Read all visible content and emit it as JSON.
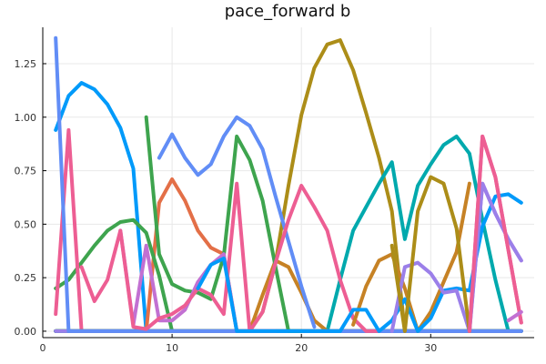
{
  "chart_data": {
    "type": "line",
    "title": "pace_forward b",
    "xlabel": "",
    "ylabel": "",
    "xlim": [
      0,
      38
    ],
    "ylim": [
      -0.03,
      1.42
    ],
    "xticks": [
      0,
      10,
      20,
      30
    ],
    "xtick_labels": [
      "0",
      "10",
      "20",
      "30"
    ],
    "yticks": [
      0.0,
      0.25,
      0.5,
      0.75,
      1.0,
      1.25
    ],
    "ytick_labels": [
      "0.00",
      "0.25",
      "0.50",
      "0.75",
      "1.00",
      "1.25"
    ],
    "grid": true,
    "legend": "none",
    "x": [
      1,
      2,
      3,
      4,
      5,
      6,
      7,
      8,
      9,
      10,
      11,
      12,
      13,
      14,
      15,
      16,
      17,
      18,
      19,
      20,
      21,
      22,
      23,
      24,
      25,
      26,
      27,
      28,
      29,
      30,
      31,
      32,
      33,
      34,
      35,
      36,
      37
    ],
    "series": [
      {
        "color": "#009AFA",
        "values": [
          0.94,
          1.1,
          1.16,
          1.13,
          1.06,
          0.95,
          0.76,
          0,
          0,
          0,
          0,
          0,
          0,
          0,
          0,
          0,
          0,
          0,
          0,
          0,
          0,
          0,
          0,
          0,
          0,
          0,
          0,
          0,
          0,
          0,
          0,
          0,
          0,
          0,
          0,
          0,
          0
        ]
      },
      {
        "color": "#E36F47",
        "values": [
          0,
          0,
          0,
          0,
          0,
          0,
          0,
          0,
          0.6,
          0.71,
          0.61,
          0.47,
          0.39,
          0.36,
          0,
          0,
          0,
          0,
          0,
          0,
          0,
          0,
          0,
          0,
          0,
          0,
          0,
          0,
          0,
          0,
          0,
          0,
          0,
          0,
          0,
          0,
          0
        ]
      },
      {
        "color": "#3EA44E",
        "values": [
          0.2,
          0.24,
          0.32,
          0.4,
          0.47,
          0.51,
          0.52,
          0.46,
          0.26,
          0,
          0,
          0,
          0,
          0,
          0,
          0,
          0,
          0,
          0,
          0,
          0,
          0,
          0,
          0,
          0,
          0,
          0,
          0,
          0,
          0,
          0,
          0,
          0,
          0,
          0,
          0,
          0
        ]
      },
      {
        "color": "#C270D2",
        "values": [
          0,
          0,
          0,
          0,
          0,
          0,
          0,
          0,
          0,
          0,
          0,
          0,
          0,
          0,
          0,
          0,
          0,
          0,
          0,
          0,
          0,
          0,
          0,
          0,
          0,
          0,
          0,
          0,
          0,
          0,
          0,
          0,
          0,
          0.69,
          0.55,
          0.43,
          0.33
        ]
      },
      {
        "color": "#AC8D18",
        "values": [
          0,
          0,
          0,
          0,
          0,
          0,
          0,
          0,
          0,
          0,
          0,
          0,
          0,
          0,
          0,
          0,
          0.09,
          0.32,
          0.68,
          1.01,
          1.23,
          1.34,
          1.36,
          1.22,
          1.02,
          0.81,
          0.56,
          0,
          0,
          0,
          0,
          0,
          0,
          0,
          0,
          0,
          0
        ]
      },
      {
        "color": "#00A9AD",
        "values": [
          0,
          0,
          0,
          0,
          0,
          0,
          0,
          0,
          0,
          0,
          0,
          0,
          0,
          0,
          0,
          0,
          0,
          0,
          0,
          0,
          0,
          0,
          0.24,
          0.47,
          0.58,
          0.69,
          0.79,
          0.43,
          0.68,
          0.78,
          0.87,
          0.91,
          0.83,
          0.52,
          0.24,
          0,
          0
        ]
      },
      {
        "color": "#ED5E93",
        "values": [
          0.08,
          0.94,
          0,
          0,
          0,
          0,
          0,
          0,
          0,
          0,
          0,
          0,
          0,
          0,
          0,
          0,
          0,
          0,
          0,
          0,
          0,
          0,
          0,
          0,
          0,
          0,
          0,
          0,
          0,
          0,
          0,
          0,
          0,
          0.91,
          0.72,
          0.38,
          0.04
        ]
      },
      {
        "color": "#C68225",
        "values": [
          0,
          0,
          0,
          0,
          0,
          0,
          0,
          0,
          0,
          0,
          0,
          0,
          0,
          0,
          0,
          0,
          0.17,
          0.33,
          0.3,
          0.18,
          0.05,
          0,
          0,
          0,
          0,
          0,
          0,
          0,
          0,
          0,
          0,
          0,
          0,
          0,
          0,
          0,
          0
        ]
      },
      {
        "color": "#00A98D",
        "values": [
          0,
          0,
          0,
          0,
          0,
          0,
          0,
          0,
          0,
          0,
          0,
          0,
          0,
          0,
          0,
          0,
          0,
          0,
          0,
          0,
          0,
          0,
          0,
          0,
          0,
          0,
          0,
          0,
          0,
          0,
          0,
          0,
          0,
          0,
          0,
          0,
          0
        ]
      },
      {
        "color": "#8E971D",
        "values": [
          0,
          0,
          0,
          0,
          0,
          0,
          0,
          0,
          0,
          0,
          0,
          0,
          0,
          0,
          0,
          0,
          0,
          0,
          0,
          0,
          0,
          0,
          0,
          0,
          0,
          0,
          0,
          0,
          0,
          0,
          0,
          0,
          0,
          0,
          0,
          0,
          0
        ]
      },
      {
        "color": "#00A8CB",
        "values": [
          0,
          0,
          0,
          0,
          0,
          0,
          0,
          0,
          0,
          0,
          0,
          0,
          0,
          0,
          0,
          0,
          0,
          0,
          0,
          0,
          0,
          0,
          0,
          0,
          0,
          0,
          0,
          0,
          0,
          0,
          0,
          0,
          0,
          0,
          0,
          0,
          0
        ]
      },
      {
        "color": "#9B7FE9",
        "values": [
          0,
          0,
          0,
          0,
          0,
          0,
          0,
          0,
          0,
          0,
          0,
          0,
          0,
          0,
          0,
          0,
          0,
          0,
          0,
          0,
          0,
          0,
          0,
          0,
          0,
          0,
          0,
          0,
          0,
          0,
          0,
          0,
          0,
          0,
          0,
          0,
          0
        ]
      },
      {
        "color": "#618DF6",
        "values": [
          1.37,
          0,
          0,
          0,
          0,
          0,
          0,
          0,
          0,
          0,
          0,
          0,
          0,
          0,
          0,
          0,
          0,
          0,
          0,
          0,
          0,
          0,
          0,
          0,
          0,
          0,
          0,
          0,
          0,
          0,
          0,
          0,
          0,
          0,
          0,
          0,
          0
        ]
      }
    ],
    "extra_segments": [
      {
        "color": "#618DF6",
        "x": [
          9,
          10,
          11,
          12,
          13,
          14,
          15,
          16,
          17,
          18,
          19,
          20,
          21
        ],
        "values": [
          0.81,
          0.92,
          0.81,
          0.73,
          0.78,
          0.91,
          1.0,
          0.96,
          0.85,
          0.63,
          0.42,
          0.21,
          0.02
        ]
      },
      {
        "color": "#3EA44E",
        "x": [
          8,
          9,
          10,
          11,
          12,
          13,
          14,
          15,
          16,
          17,
          18,
          19,
          20
        ],
        "values": [
          1.0,
          0.36,
          0.22,
          0.19,
          0.18,
          0.15,
          0.35,
          0.91,
          0.8,
          0.61,
          0.3,
          0,
          0
        ]
      },
      {
        "color": "#C270D2",
        "x": [
          6,
          7,
          8,
          9,
          10,
          11,
          12,
          13,
          14,
          15,
          16,
          17,
          18
        ],
        "values": [
          0.47,
          0.03,
          0.4,
          0.05,
          0.05,
          0.1,
          0.23,
          0.31,
          0.36,
          0,
          0,
          0,
          0
        ]
      },
      {
        "color": "#ED5E93",
        "x": [
          3,
          4,
          5,
          6,
          7,
          8,
          9,
          10,
          11,
          12,
          13,
          14,
          15,
          16,
          17,
          18,
          19,
          20,
          21,
          22,
          23,
          24,
          25,
          26
        ],
        "values": [
          0.3,
          0.14,
          0.24,
          0.47,
          0.02,
          0.01,
          0.06,
          0.08,
          0.12,
          0.2,
          0.17,
          0.08,
          0.69,
          0,
          0.09,
          0.32,
          0.52,
          0.68,
          0.58,
          0.47,
          0.24,
          0.06,
          0,
          0
        ]
      },
      {
        "color": "#C68225",
        "x": [
          24,
          25,
          26,
          27,
          28,
          29,
          30,
          31,
          32,
          33
        ],
        "values": [
          0.03,
          0.21,
          0.33,
          0.36,
          0.2,
          0,
          0.09,
          0.23,
          0.37,
          0.69
        ]
      },
      {
        "color": "#009AFA",
        "x": [
          12,
          13,
          14,
          15,
          16,
          17,
          18,
          19,
          20,
          21,
          22,
          23,
          24,
          25,
          26,
          27,
          28,
          29,
          30,
          31,
          32,
          33,
          34,
          35,
          36,
          37
        ],
        "values": [
          0.2,
          0.31,
          0.34,
          0,
          0,
          0,
          0,
          0,
          0,
          0,
          0,
          0,
          0.1,
          0.1,
          0,
          0.05,
          0.15,
          0,
          0.06,
          0.19,
          0.2,
          0.19,
          0.49,
          0.63,
          0.64,
          0.6
        ]
      },
      {
        "color": "#9B7FE9",
        "x": [
          27,
          28,
          29,
          30,
          31,
          32,
          33,
          34,
          35,
          36,
          37
        ],
        "values": [
          0,
          0.3,
          0.32,
          0.27,
          0.18,
          0.19,
          0,
          0.69,
          0.55,
          0.43,
          0.33
        ]
      },
      {
        "color": "#AC8D18",
        "x": [
          27,
          28,
          29,
          30,
          31,
          32,
          33
        ],
        "values": [
          0.4,
          0,
          0.56,
          0.72,
          0.69,
          0.48,
          0
        ]
      },
      {
        "color": "#ED5E93",
        "x": [
          33,
          34,
          35,
          36,
          37
        ],
        "values": [
          0,
          0.91,
          0.72,
          0.38,
          0.04
        ]
      },
      {
        "color": "#C270D2",
        "x": [
          36,
          37
        ],
        "values": [
          0.05,
          0.09
        ]
      }
    ]
  }
}
